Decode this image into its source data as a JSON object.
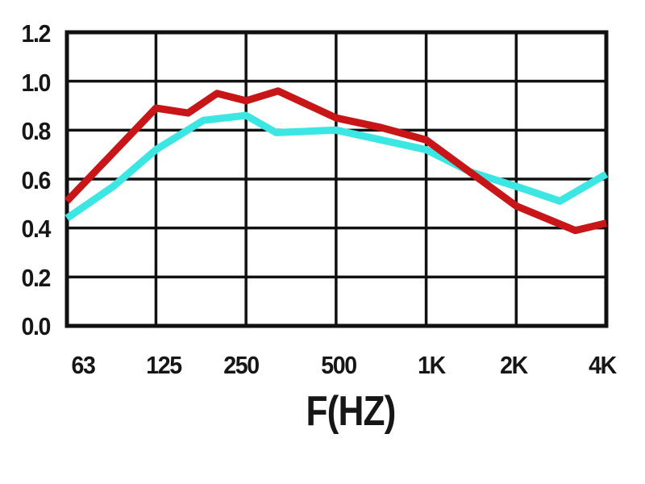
{
  "chart_data": {
    "type": "line",
    "title": "",
    "xlabel": "F(HZ)",
    "ylabel": "",
    "x_scale": "log",
    "grid": true,
    "legend": "none",
    "ylim": [
      0.0,
      1.2
    ],
    "y_tick_labels": [
      "1.2",
      "1.0",
      "0.8",
      "0.6",
      "0.4",
      "0.2",
      "0.0"
    ],
    "y_tick_values": [
      1.2,
      1.0,
      0.8,
      0.6,
      0.4,
      0.2,
      0.0
    ],
    "x_tick_labels": [
      "63",
      "125",
      "250",
      "500",
      "1K",
      "2K",
      "4K"
    ],
    "x_tick_values": [
      63,
      125,
      250,
      500,
      1000,
      2000,
      4000
    ],
    "series": [
      {
        "name": "red-curve",
        "color": "#c81518",
        "points": [
          [
            63,
            0.51
          ],
          [
            125,
            0.89
          ],
          [
            160,
            0.87
          ],
          [
            200,
            0.95
          ],
          [
            250,
            0.92
          ],
          [
            320,
            0.96
          ],
          [
            500,
            0.85
          ],
          [
            710,
            0.81
          ],
          [
            1000,
            0.76
          ],
          [
            2000,
            0.49
          ],
          [
            3150,
            0.39
          ],
          [
            4000,
            0.42
          ]
        ]
      },
      {
        "name": "cyan-curve",
        "color": "#3ce6e2",
        "points": [
          [
            63,
            0.44
          ],
          [
            90,
            0.57
          ],
          [
            125,
            0.72
          ],
          [
            180,
            0.84
          ],
          [
            250,
            0.86
          ],
          [
            315,
            0.79
          ],
          [
            500,
            0.8
          ],
          [
            1000,
            0.72
          ],
          [
            1400,
            0.63
          ],
          [
            2000,
            0.57
          ],
          [
            2800,
            0.51
          ],
          [
            4000,
            0.62
          ]
        ]
      }
    ]
  },
  "colors": {
    "grid": "#111111",
    "background": "#ffffff",
    "red_series": "#c81518",
    "cyan_series": "#3ce6e2"
  }
}
